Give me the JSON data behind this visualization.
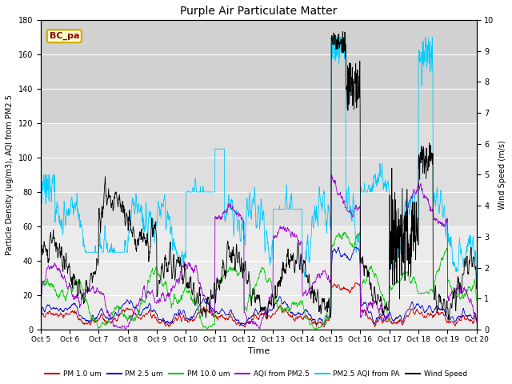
{
  "title": "Purple Air Particulate Matter",
  "xlabel": "Time",
  "ylabel_left": "Particle Density (ug/m3), AQI from PM2.5",
  "ylabel_right": "Wind Speed (m/s)",
  "annotation": "BC_pa",
  "ylim_left": [
    0,
    180
  ],
  "ylim_right": [
    0.0,
    10.0
  ],
  "yticks_left": [
    0,
    20,
    40,
    60,
    80,
    100,
    120,
    140,
    160,
    180
  ],
  "yticks_right": [
    0.0,
    1.0,
    2.0,
    3.0,
    4.0,
    5.0,
    6.0,
    7.0,
    8.0,
    9.0,
    10.0
  ],
  "xtick_labels": [
    "Oct 5",
    "Oct 6",
    "Oct 7",
    "Oct 8",
    "Oct 9",
    "Oct 10",
    "Oct 11",
    "Oct 12",
    "Oct 13",
    "Oct 14",
    "Oct 15",
    "Oct 16",
    "Oct 17",
    "Oct 18",
    "Oct 19",
    "Oct 20"
  ],
  "n_points": 1500,
  "colors": {
    "pm1": "#cc0000",
    "pm25": "#0000cc",
    "pm10": "#00cc00",
    "aqi_pm25": "#9900cc",
    "aqi_pa": "#00ccff",
    "wind": "#000000"
  },
  "legend_labels": [
    "PM 1.0 um",
    "PM 2.5 um",
    "PM 10.0 um",
    "AQI from PM2.5",
    "PM2.5 AQI from PA",
    "Wind Speed"
  ],
  "bg_bands": [
    {
      "ymin": 0,
      "ymax": 60,
      "color": "#ebebeb"
    },
    {
      "ymin": 60,
      "ymax": 120,
      "color": "#dedede"
    },
    {
      "ymin": 120,
      "ymax": 180,
      "color": "#d1d1d1"
    }
  ]
}
